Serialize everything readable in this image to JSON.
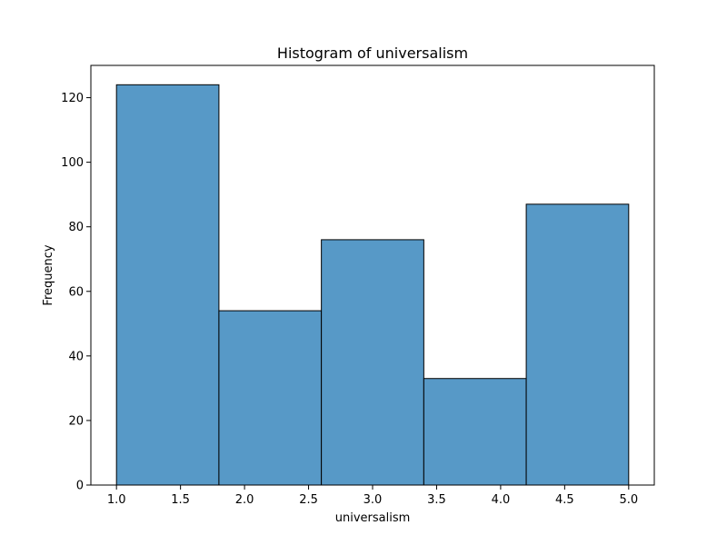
{
  "chart_data": {
    "type": "bar",
    "title": "Histogram of universalism",
    "xlabel": "universalism",
    "ylabel": "Frequency",
    "bins": [
      {
        "start": 1.0,
        "end": 1.8,
        "value": 124
      },
      {
        "start": 1.8,
        "end": 2.6,
        "value": 54
      },
      {
        "start": 2.6,
        "end": 3.4,
        "value": 76
      },
      {
        "start": 3.4,
        "end": 4.2,
        "value": 33
      },
      {
        "start": 4.2,
        "end": 5.0,
        "value": 87
      }
    ],
    "xlim": [
      0.8,
      5.2
    ],
    "ylim": [
      0,
      130
    ],
    "xticks": [
      1.0,
      1.5,
      2.0,
      2.5,
      3.0,
      3.5,
      4.0,
      4.5,
      5.0
    ],
    "xtick_labels": [
      "1.0",
      "1.5",
      "2.0",
      "2.5",
      "3.0",
      "3.5",
      "4.0",
      "4.5",
      "5.0"
    ],
    "yticks": [
      0,
      20,
      40,
      60,
      80,
      100,
      120
    ],
    "ytick_labels": [
      "0",
      "20",
      "40",
      "60",
      "80",
      "100",
      "120"
    ],
    "bar_color": "#5799c7",
    "edge_color": "#000000",
    "grid": false,
    "legend": null
  }
}
